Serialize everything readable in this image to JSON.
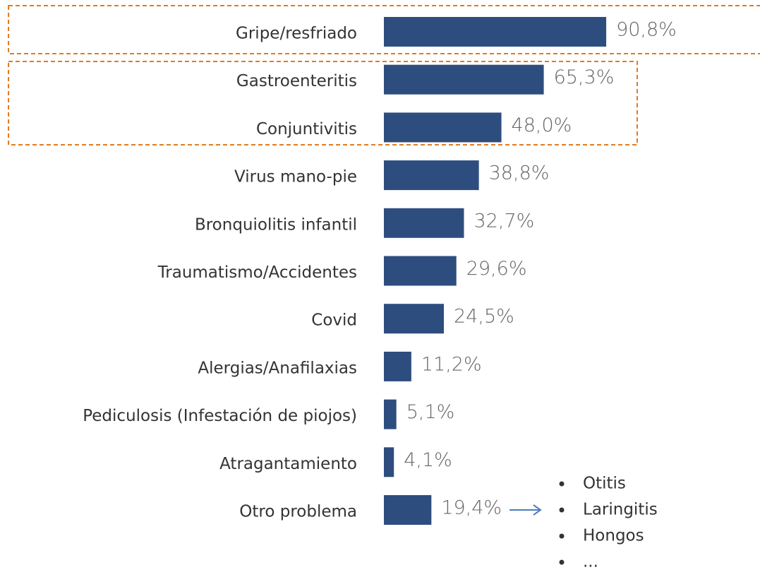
{
  "chart_data": {
    "type": "hbar",
    "categories": [
      "Gripe/resfriado",
      "Gastroenteritis",
      "Conjuntivitis",
      "Virus mano-pie",
      "Bronquiolitis infantil",
      "Traumatismo/Accidentes",
      "Covid",
      "Alergias/Anafilaxias",
      "Pediculosis (Infestación de piojos)",
      "Atragantamiento",
      "Otro problema"
    ],
    "values": [
      90.8,
      65.3,
      48.0,
      38.8,
      32.7,
      29.6,
      24.5,
      11.2,
      5.1,
      4.1,
      19.4
    ],
    "value_labels": [
      "90,8%",
      "65,3%",
      "48,0%",
      "38,8%",
      "32,7%",
      "29,6%",
      "24,5%",
      "11,2%",
      "5,1%",
      "4,1%",
      "19,4%"
    ],
    "color": "#2e4d7f",
    "xlim": [
      0,
      100
    ],
    "annotations": [
      "Otitis",
      "Laringitis",
      "Hongos",
      "..."
    ]
  }
}
